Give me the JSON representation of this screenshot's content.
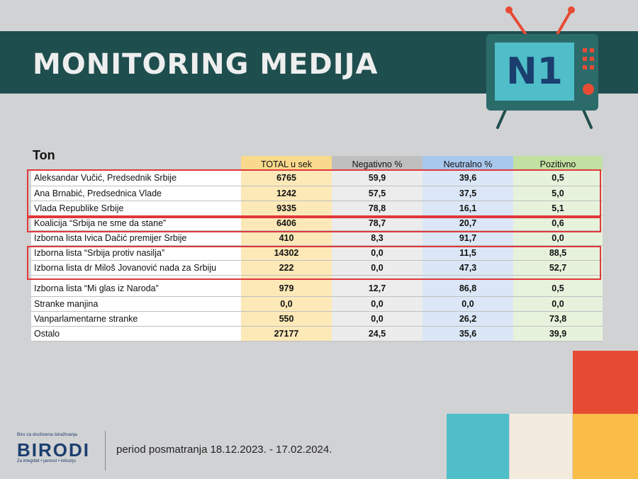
{
  "header": {
    "title": "MONITORING MEDIJA",
    "logo_text": "N1"
  },
  "chart_data": {
    "type": "table",
    "title": "Ton",
    "columns": [
      "TOTAL u sek",
      "Negativno %",
      "Neutralno %",
      "Pozitivno"
    ],
    "rows": [
      {
        "label": "Aleksandar Vučić, Predsednik Srbije",
        "values": [
          "6765",
          "59,9",
          "39,6",
          "0,5"
        ]
      },
      {
        "label": "Ana Brnabić, Predsednica Vlade",
        "values": [
          "1242",
          "57,5",
          "37,5",
          "5,0"
        ]
      },
      {
        "label": "Vlada Republike Srbije",
        "values": [
          "9335",
          "78,8",
          "16,1",
          "5,1"
        ]
      },
      {
        "label": "Koalicija “Srbija ne sme da stane”",
        "values": [
          "6406",
          "78,7",
          "20,7",
          "0,6"
        ]
      },
      {
        "label": "Izborna lista Ivica Dačić premijer Srbije",
        "values": [
          "410",
          "8,3",
          "91,7",
          "0,0"
        ]
      },
      {
        "label": "Izborna lista “Srbija protiv nasilja”",
        "values": [
          "14302",
          "0,0",
          "11,5",
          "88,5"
        ]
      },
      {
        "label": "Izborna lista dr Miloš Jovanović nada za Srbiju",
        "values": [
          "222",
          "0,0",
          "47,3",
          "52,7"
        ]
      },
      {
        "label": "Izborna lista “Mi glas iz Naroda”",
        "values": [
          "979",
          "12,7",
          "86,8",
          "0,5"
        ]
      },
      {
        "label": "Stranke manjina",
        "values": [
          "0,0",
          "0,0",
          "0,0",
          "0,0"
        ]
      },
      {
        "label": "Vanparlamentarne stranke",
        "values": [
          "550",
          "0,0",
          "26,2",
          "73,8"
        ]
      },
      {
        "label": "Ostalo",
        "values": [
          "27177",
          "24,5",
          "35,6",
          "39,9"
        ]
      }
    ]
  },
  "footer": {
    "org_small": "Biro za društvena istraživanja",
    "org_name": "BIRODI",
    "org_tagline": "Za integritet • javnost • inkluziju",
    "period": "period posmatranja 18.12.2023. - 17.02.2024."
  },
  "colors": {
    "banner": "#1f4e4e",
    "highlight": "#e0383b",
    "col_total": "#f9d98c",
    "col_negative": "#bfbfbf",
    "col_neutral": "#a9c8ee",
    "col_positive": "#c1e0a2"
  }
}
